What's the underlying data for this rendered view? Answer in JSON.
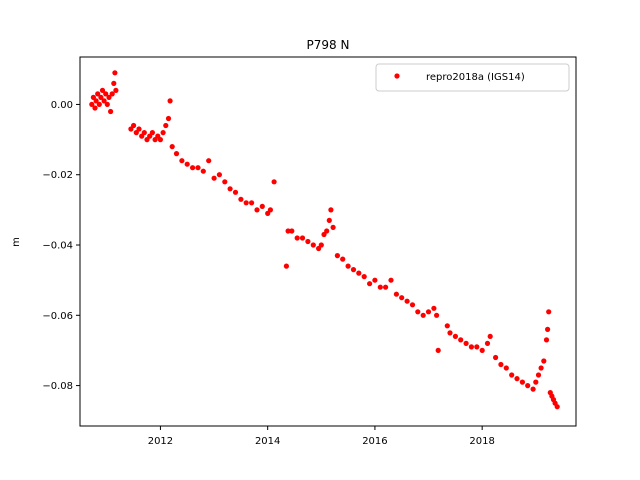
{
  "chart_data": {
    "type": "scatter",
    "title": "P798 N",
    "xlabel": "",
    "ylabel": "m",
    "xlim": [
      2010.5,
      2019.75
    ],
    "ylim": [
      -0.0915,
      0.0135
    ],
    "x_ticks": [
      2012,
      2014,
      2016,
      2018
    ],
    "x_tick_labels": [
      "2012",
      "2014",
      "2016",
      "2018"
    ],
    "y_ticks": [
      0.0,
      -0.02,
      -0.04,
      -0.06,
      -0.08
    ],
    "y_tick_labels": [
      "0.00",
      "−0.02",
      "−0.04",
      "−0.06",
      "−0.08"
    ],
    "grid": false,
    "legend_position": "top-right",
    "series": [
      {
        "name": "repro2018a (IGS14)",
        "color": "#ff0000",
        "marker": "circle",
        "points": [
          [
            2010.72,
            0.0
          ],
          [
            2010.75,
            0.002
          ],
          [
            2010.78,
            -0.001
          ],
          [
            2010.8,
            0.001
          ],
          [
            2010.83,
            0.003
          ],
          [
            2010.86,
            0.0
          ],
          [
            2010.89,
            0.002
          ],
          [
            2010.92,
            0.004
          ],
          [
            2010.95,
            0.001
          ],
          [
            2010.98,
            0.003
          ],
          [
            2011.01,
            0.0
          ],
          [
            2011.04,
            0.002
          ],
          [
            2011.07,
            -0.002
          ],
          [
            2011.1,
            0.003
          ],
          [
            2011.13,
            0.006
          ],
          [
            2011.15,
            0.009
          ],
          [
            2011.17,
            0.004
          ],
          [
            2011.45,
            -0.007
          ],
          [
            2011.5,
            -0.006
          ],
          [
            2011.55,
            -0.008
          ],
          [
            2011.6,
            -0.007
          ],
          [
            2011.65,
            -0.009
          ],
          [
            2011.7,
            -0.008
          ],
          [
            2011.75,
            -0.01
          ],
          [
            2011.8,
            -0.009
          ],
          [
            2011.85,
            -0.008
          ],
          [
            2011.9,
            -0.01
          ],
          [
            2011.95,
            -0.009
          ],
          [
            2012.0,
            -0.01
          ],
          [
            2012.05,
            -0.008
          ],
          [
            2012.1,
            -0.006
          ],
          [
            2012.15,
            -0.004
          ],
          [
            2012.18,
            0.001
          ],
          [
            2012.22,
            -0.012
          ],
          [
            2012.3,
            -0.014
          ],
          [
            2012.4,
            -0.016
          ],
          [
            2012.5,
            -0.017
          ],
          [
            2012.6,
            -0.018
          ],
          [
            2012.7,
            -0.018
          ],
          [
            2012.8,
            -0.019
          ],
          [
            2012.9,
            -0.016
          ],
          [
            2013.0,
            -0.021
          ],
          [
            2013.1,
            -0.02
          ],
          [
            2013.2,
            -0.022
          ],
          [
            2013.3,
            -0.024
          ],
          [
            2013.4,
            -0.025
          ],
          [
            2013.5,
            -0.027
          ],
          [
            2013.6,
            -0.028
          ],
          [
            2013.7,
            -0.028
          ],
          [
            2013.8,
            -0.03
          ],
          [
            2013.9,
            -0.029
          ],
          [
            2014.0,
            -0.031
          ],
          [
            2014.05,
            -0.03
          ],
          [
            2014.12,
            -0.022
          ],
          [
            2014.35,
            -0.046
          ],
          [
            2014.38,
            -0.036
          ],
          [
            2014.45,
            -0.036
          ],
          [
            2014.55,
            -0.038
          ],
          [
            2014.65,
            -0.038
          ],
          [
            2014.75,
            -0.039
          ],
          [
            2014.85,
            -0.04
          ],
          [
            2014.95,
            -0.041
          ],
          [
            2015.0,
            -0.04
          ],
          [
            2015.05,
            -0.037
          ],
          [
            2015.1,
            -0.036
          ],
          [
            2015.15,
            -0.033
          ],
          [
            2015.18,
            -0.03
          ],
          [
            2015.22,
            -0.035
          ],
          [
            2015.3,
            -0.043
          ],
          [
            2015.4,
            -0.044
          ],
          [
            2015.5,
            -0.046
          ],
          [
            2015.6,
            -0.047
          ],
          [
            2015.7,
            -0.048
          ],
          [
            2015.8,
            -0.049
          ],
          [
            2015.9,
            -0.051
          ],
          [
            2016.0,
            -0.05
          ],
          [
            2016.1,
            -0.052
          ],
          [
            2016.2,
            -0.052
          ],
          [
            2016.3,
            -0.05
          ],
          [
            2016.4,
            -0.054
          ],
          [
            2016.5,
            -0.055
          ],
          [
            2016.6,
            -0.056
          ],
          [
            2016.7,
            -0.057
          ],
          [
            2016.8,
            -0.059
          ],
          [
            2016.9,
            -0.06
          ],
          [
            2017.0,
            -0.059
          ],
          [
            2017.1,
            -0.058
          ],
          [
            2017.15,
            -0.06
          ],
          [
            2017.18,
            -0.07
          ],
          [
            2017.35,
            -0.063
          ],
          [
            2017.4,
            -0.065
          ],
          [
            2017.5,
            -0.066
          ],
          [
            2017.6,
            -0.067
          ],
          [
            2017.7,
            -0.068
          ],
          [
            2017.8,
            -0.069
          ],
          [
            2017.9,
            -0.069
          ],
          [
            2018.0,
            -0.07
          ],
          [
            2018.1,
            -0.068
          ],
          [
            2018.15,
            -0.066
          ],
          [
            2018.25,
            -0.072
          ],
          [
            2018.35,
            -0.074
          ],
          [
            2018.45,
            -0.075
          ],
          [
            2018.55,
            -0.077
          ],
          [
            2018.65,
            -0.078
          ],
          [
            2018.75,
            -0.079
          ],
          [
            2018.85,
            -0.08
          ],
          [
            2018.95,
            -0.081
          ],
          [
            2019.0,
            -0.079
          ],
          [
            2019.05,
            -0.077
          ],
          [
            2019.1,
            -0.075
          ],
          [
            2019.15,
            -0.073
          ],
          [
            2019.2,
            -0.067
          ],
          [
            2019.22,
            -0.064
          ],
          [
            2019.24,
            -0.059
          ],
          [
            2019.27,
            -0.082
          ],
          [
            2019.3,
            -0.083
          ],
          [
            2019.33,
            -0.084
          ],
          [
            2019.36,
            -0.085
          ],
          [
            2019.4,
            -0.086
          ]
        ]
      }
    ]
  }
}
